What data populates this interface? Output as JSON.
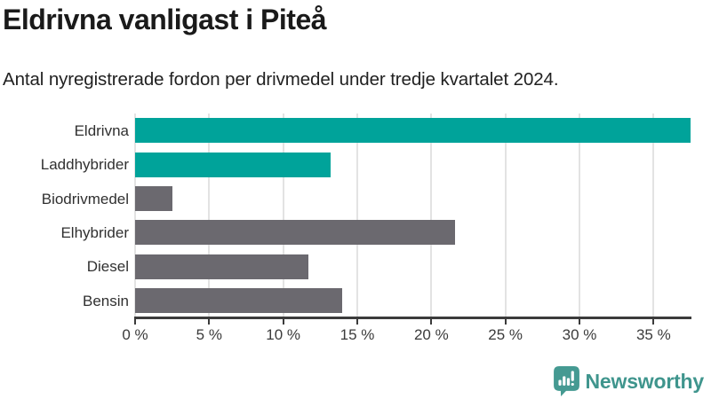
{
  "header": {
    "title": "Eldrivna vanligast i Piteå",
    "subtitle": "Antal nyregistrerade fordon per drivmedel under tredje kvartalet 2024."
  },
  "chart_data": {
    "type": "bar",
    "orientation": "horizontal",
    "title": "Eldrivna vanligast i Piteå",
    "subtitle": "Antal nyregistrerade fordon per drivmedel under tredje kvartalet 2024.",
    "categories": [
      "Eldrivna",
      "Laddhybrider",
      "Biodrivmedel",
      "Elhybrider",
      "Diesel",
      "Bensin"
    ],
    "values": [
      37.5,
      13.2,
      2.5,
      21.6,
      11.7,
      14.0
    ],
    "unit": "%",
    "bar_colors": [
      "#00a39a",
      "#00a39a",
      "#6b696f",
      "#6b696f",
      "#6b696f",
      "#6b696f"
    ],
    "xlim": [
      0,
      37.5
    ],
    "x_tick_values": [
      0,
      5,
      10,
      15,
      20,
      25,
      30,
      35
    ],
    "x_tick_labels": [
      "0 %",
      "5 %",
      "10 %",
      "15 %",
      "20 %",
      "25 %",
      "30 %",
      "35 %"
    ],
    "grid": true,
    "gridline_color": "#e3e3e3",
    "axis_color": "#3b3b3b",
    "legend": "none",
    "xlabel": "",
    "ylabel": ""
  },
  "branding": {
    "logo_text": "Newsworthy",
    "logo_color": "#3f958d",
    "icon_color": "#459a92",
    "icon_name": "newsworthy-speech-bubble-bar-chart-icon"
  }
}
